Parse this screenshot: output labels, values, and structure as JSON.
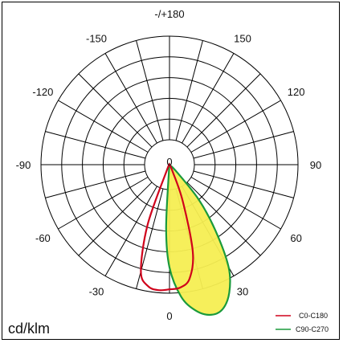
{
  "chart_data": {
    "type": "polar",
    "unit_label": "cd/klm",
    "angle_labels": [
      {
        "angle": 180,
        "text": "-/+180"
      },
      {
        "angle": 150,
        "text": "150"
      },
      {
        "angle": -150,
        "text": "-150"
      },
      {
        "angle": 120,
        "text": "120"
      },
      {
        "angle": -120,
        "text": "-120"
      },
      {
        "angle": 90,
        "text": "90"
      },
      {
        "angle": -90,
        "text": "-90"
      },
      {
        "angle": 60,
        "text": "60"
      },
      {
        "angle": -60,
        "text": "-60"
      },
      {
        "angle": 30,
        "text": "30"
      },
      {
        "angle": -30,
        "text": "-30"
      },
      {
        "angle": 0,
        "text": "0"
      }
    ],
    "center_label": "0",
    "grid": {
      "rings": 6,
      "angle_step_deg": 15
    },
    "series": [
      {
        "name": "C0-C180",
        "color": "#d0021b",
        "fill": "none",
        "points": [
          {
            "angle": -25,
            "value": 0.05
          },
          {
            "angle": -20,
            "value": 0.5
          },
          {
            "angle": -15,
            "value": 0.86
          },
          {
            "angle": -10,
            "value": 0.96
          },
          {
            "angle": -5,
            "value": 0.98
          },
          {
            "angle": 0,
            "value": 0.97
          },
          {
            "angle": 5,
            "value": 0.96
          },
          {
            "angle": 10,
            "value": 0.9
          },
          {
            "angle": 15,
            "value": 0.7
          },
          {
            "angle": 20,
            "value": 0.3
          },
          {
            "angle": 25,
            "value": 0.05
          }
        ]
      },
      {
        "name": "C90-C270",
        "color": "#1a9a3c",
        "fill": "#f6ee52",
        "points": [
          {
            "angle": -5,
            "value": 0.05
          },
          {
            "angle": -3,
            "value": 0.5
          },
          {
            "angle": 0,
            "value": 0.8
          },
          {
            "angle": 5,
            "value": 1.03
          },
          {
            "angle": 10,
            "value": 1.15
          },
          {
            "angle": 15,
            "value": 1.21
          },
          {
            "angle": 20,
            "value": 1.2
          },
          {
            "angle": 25,
            "value": 1.1
          },
          {
            "angle": 30,
            "value": 0.92
          },
          {
            "angle": 35,
            "value": 0.62
          },
          {
            "angle": 40,
            "value": 0.35
          },
          {
            "angle": 45,
            "value": 0.08
          }
        ]
      }
    ]
  }
}
